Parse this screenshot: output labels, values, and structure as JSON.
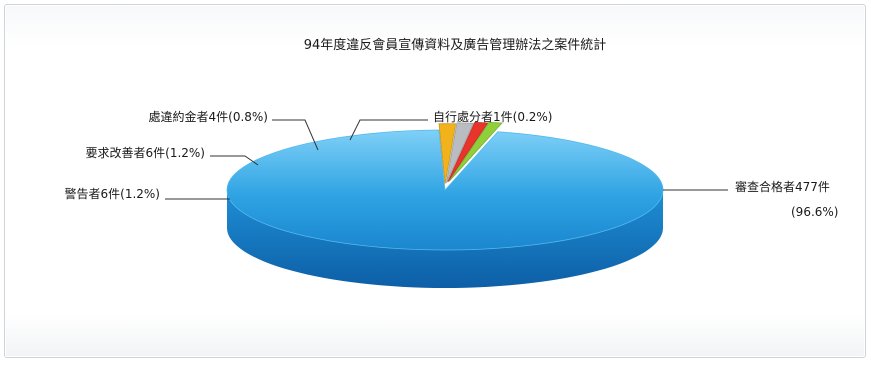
{
  "chart_data": {
    "type": "pie",
    "style": "3d",
    "title": "94年度違反會員宣傳資料及廣告管理辦法之案件統計",
    "legend": "none",
    "slices": [
      {
        "label": "審查合格者477件",
        "label2": "(96.6%)",
        "value": 477,
        "percent": 96.6,
        "color": "#2ea3e3"
      },
      {
        "label": "警告者6件(1.2%)",
        "value": 6,
        "percent": 1.2,
        "color": "#f2b21c"
      },
      {
        "label": "要求改善者6件(1.2%)",
        "value": 6,
        "percent": 1.2,
        "color": "#b9bcc0"
      },
      {
        "label": "處違約金者4件(0.8%)",
        "value": 4,
        "percent": 0.8,
        "color": "#e8352b"
      },
      {
        "label": "自行處分者1件(0.2%)",
        "value": 1,
        "percent": 0.2,
        "color": "#8fcf3a"
      }
    ]
  }
}
